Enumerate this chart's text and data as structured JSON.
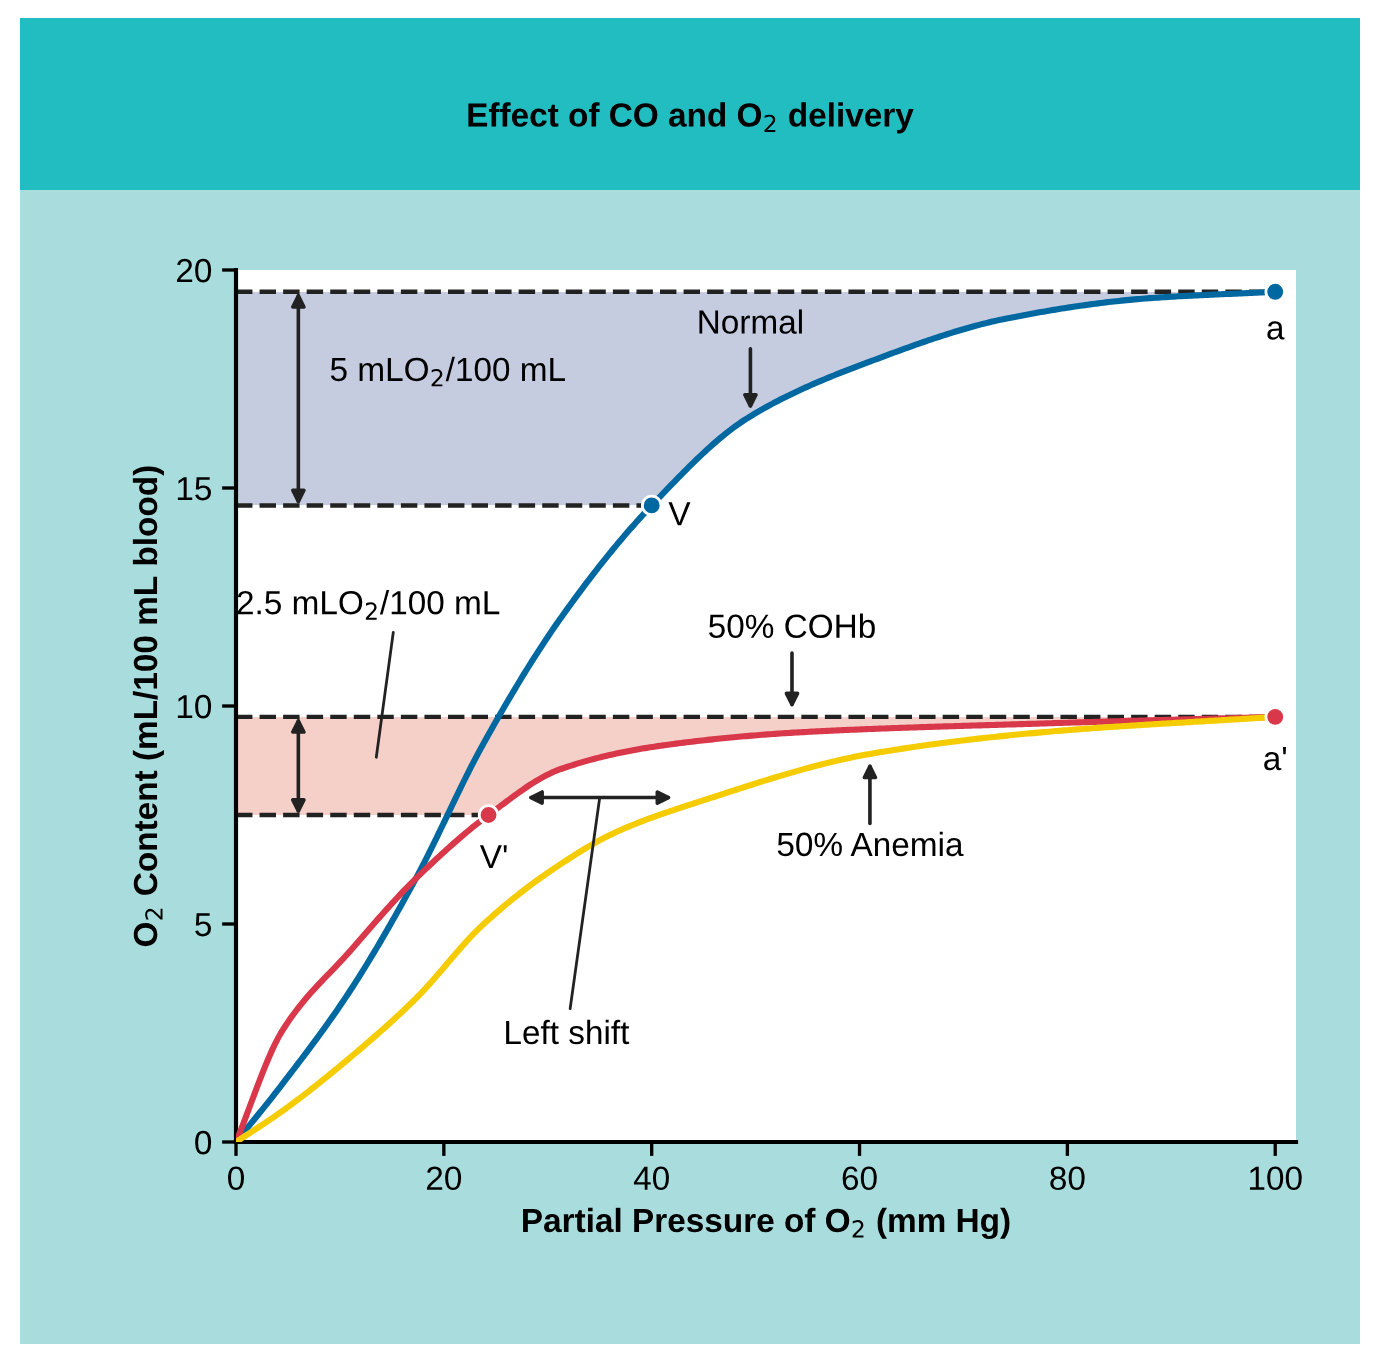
{
  "chart_data": {
    "type": "line",
    "title": "Effect of CO and O$_{2}$ delivery",
    "xlabel": "Partial Pressure of O$_{2}$ (mm Hg)",
    "ylabel": "O$_{2}$ Content (mL/100 mL blood)",
    "xlim": [
      0,
      102
    ],
    "ylim": [
      0,
      20
    ],
    "xticks": [
      0,
      20,
      40,
      60,
      80,
      100
    ],
    "yticks": [
      0,
      5,
      10,
      15,
      20
    ],
    "grid": false,
    "line_style": "solid",
    "series": [
      {
        "color": "#0068a0",
        "x": [
          0,
          4.4,
          10.9,
          17.3,
          23.7,
          31.2,
          40,
          49.2,
          61,
          74.4,
          87.7,
          100
        ],
        "values": [
          0,
          1.31,
          3.44,
          6.04,
          9.09,
          12.0,
          14.6,
          16.6,
          17.9,
          18.9,
          19.35,
          19.5
        ]
      },
      {
        "color": "#d8384a",
        "x": [
          0,
          4.4,
          10.9,
          17.3,
          24.3,
          31.2,
          41.2,
          54.5,
          77.7,
          100
        ],
        "values": [
          0,
          2.53,
          4.36,
          6.04,
          7.5,
          8.55,
          9.1,
          9.4,
          9.6,
          9.75
        ]
      },
      {
        "color": "#f5cc00",
        "x": [
          0,
          4.4,
          10.9,
          17.3,
          23.7,
          30.1,
          36.5,
          44.5,
          61,
          77.7,
          100
        ],
        "values": [
          0,
          0.7,
          1.92,
          3.29,
          4.97,
          6.19,
          7.1,
          7.8,
          8.9,
          9.4,
          9.75
        ]
      },
      {
        "type": "scatter",
        "color": "#0068a0",
        "x": [
          40,
          100
        ],
        "values": [
          14.6,
          19.5
        ]
      },
      {
        "type": "scatter",
        "color": "#d8384a",
        "x": [
          24.3,
          100
        ],
        "values": [
          7.5,
          9.75
        ]
      }
    ],
    "ref_lines": [
      {
        "axis": "y",
        "value": 19.5,
        "color": "#222222",
        "line_style": "dashed"
      },
      {
        "axis": "y",
        "value": 14.6,
        "color": "#222222",
        "line_style": "dashed"
      },
      {
        "axis": "y",
        "value": 9.75,
        "color": "#222222",
        "line_style": "dashed"
      },
      {
        "axis": "y",
        "value": 7.5,
        "color": "#222222",
        "line_style": "dashed"
      }
    ],
    "bands": [
      {
        "axis": "y",
        "from": 14.6,
        "to": 19.5,
        "label": "5 mLO$_{2}$/100 mL",
        "color": "#c5cce0"
      },
      {
        "axis": "y",
        "from": 7.5,
        "to": 9.75,
        "label": "2.5 mLO$_{2}$/100 mL",
        "color": "#f5d0c8"
      }
    ],
    "annotations": [
      {
        "text": "a",
        "x": 100,
        "y": 19.5
      },
      {
        "text": "V",
        "x": 40,
        "y": 14.6
      },
      {
        "text": "a'",
        "x": 100,
        "y": 9.75
      },
      {
        "text": "V'",
        "x": 24.3,
        "y": 7.5
      },
      {
        "text": "Normal",
        "x": 49.5,
        "y": 16.6
      },
      {
        "text": "50% COHb",
        "x": 53.5,
        "y": 9.75
      },
      {
        "text": "50% Anemia",
        "x": 61,
        "y": 8.9
      },
      "Left shift"
    ]
  }
}
